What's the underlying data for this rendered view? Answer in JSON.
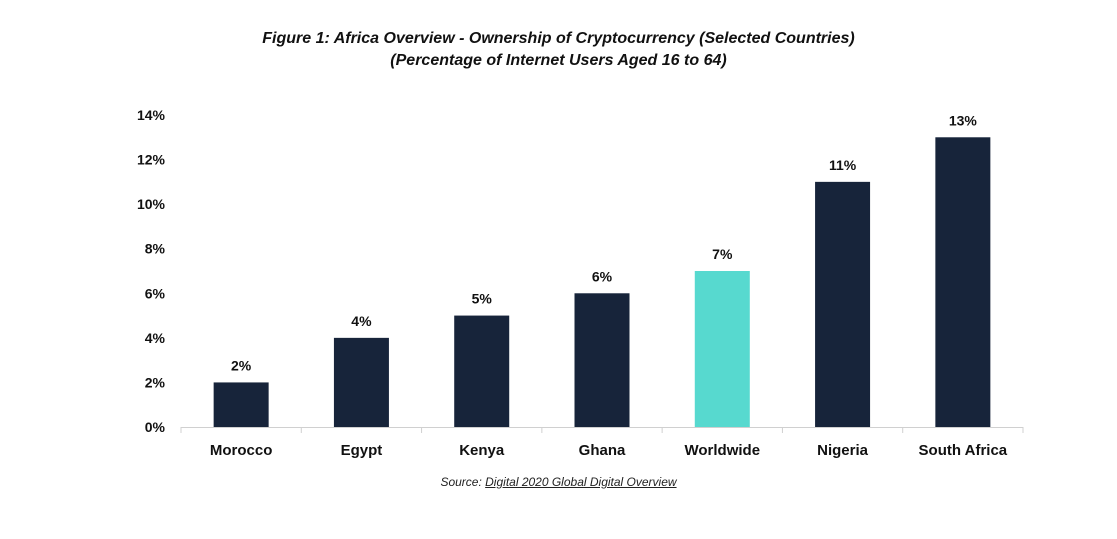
{
  "chart_data": {
    "type": "bar",
    "title": "Figure 1: Africa Overview - Ownership of Cryptocurrency (Selected Countries)",
    "subtitle": "(Percentage of Internet Users Aged 16 to 64)",
    "xlabel": "",
    "ylabel": "",
    "categories": [
      "Morocco",
      "Egypt",
      "Kenya",
      "Ghana",
      "Worldwide",
      "Nigeria",
      "South Africa"
    ],
    "values": [
      2,
      4,
      5,
      6,
      7,
      11,
      13
    ],
    "data_labels": [
      "2%",
      "4%",
      "5%",
      "6%",
      "7%",
      "11%",
      "13%"
    ],
    "highlight_category": "Worldwide",
    "ylim": [
      0,
      14
    ],
    "y_ticks": [
      0,
      2,
      4,
      6,
      8,
      10,
      12,
      14
    ],
    "y_tick_labels": [
      "0%",
      "2%",
      "4%",
      "6%",
      "8%",
      "10%",
      "12%",
      "14%"
    ],
    "grid": false,
    "legend": "none",
    "colors": {
      "default_bar": "#17243A",
      "highlight_bar": "#57D9CF",
      "axis": "#D0D0D0"
    }
  },
  "source": {
    "prefix": "Source: ",
    "link_text": "Digital 2020 Global Digital Overview"
  }
}
